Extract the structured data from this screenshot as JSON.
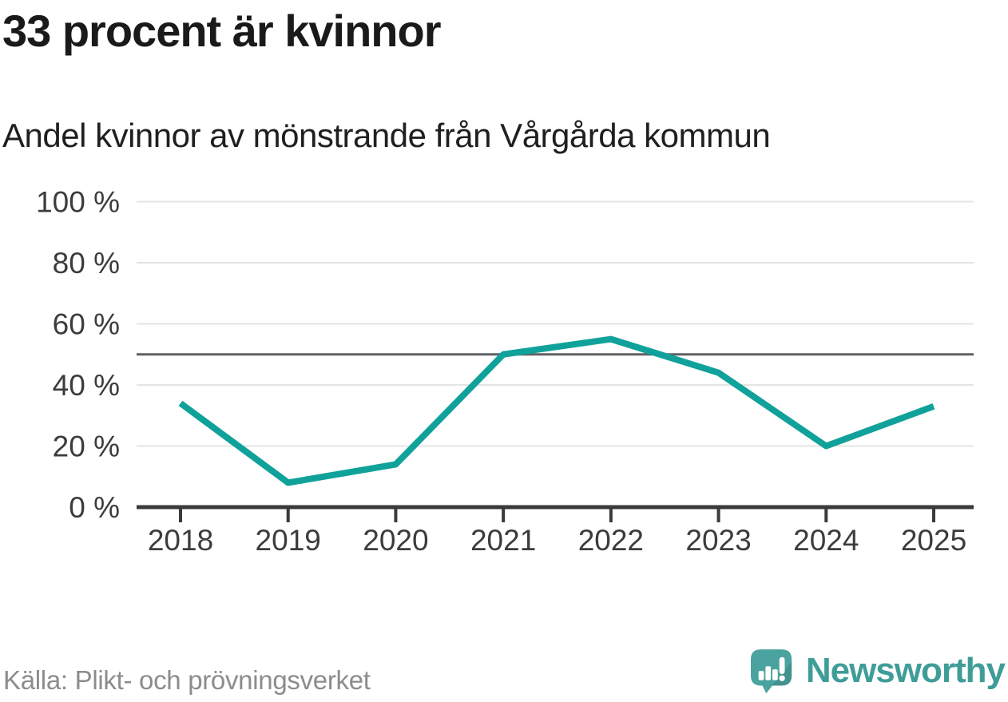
{
  "header": {
    "title": "33 procent är kvinnor",
    "subtitle": "Andel kvinnor av mönstrande från Vårgårda kommun"
  },
  "chart_data": {
    "type": "line",
    "title": "33 procent är kvinnor",
    "subtitle": "Andel kvinnor av mönstrande från Vårgårda kommun",
    "x": [
      2018,
      2019,
      2020,
      2021,
      2022,
      2023,
      2024,
      2025
    ],
    "xtick_labels": [
      "2018",
      "2019",
      "2020",
      "2021",
      "2022",
      "2023",
      "2024",
      "2025"
    ],
    "series": [
      {
        "name": "Andel kvinnor av mönstrande",
        "values": [
          34,
          8,
          14,
          50,
          55,
          44,
          20,
          33
        ],
        "color": "#10a29a"
      }
    ],
    "unit": "%",
    "ylim": [
      0,
      100
    ],
    "yticks": [
      0,
      20,
      40,
      60,
      80,
      100
    ],
    "ytick_labels": [
      "0 %",
      "20 %",
      "40 %",
      "60 %",
      "80 %",
      "100 %"
    ],
    "reference_line": {
      "value": 50,
      "color": "#5f6064"
    },
    "grid": "horizontal",
    "legend": "none"
  },
  "footer": {
    "source": "Källa: Plikt- och prövningsverket",
    "brand": "Newsworthy"
  },
  "colors": {
    "line": "#10a29a",
    "grid": "#e4e4e4",
    "reference": "#5f6064",
    "axis": "#3a3a3a",
    "axis_text": "#3c3c3c",
    "title_text": "#1a1a1a",
    "source_text": "#8c8c8c",
    "logo": "#4aa39e",
    "logo_shadow": "#3e948e",
    "wordmark": "#3f9d98"
  }
}
